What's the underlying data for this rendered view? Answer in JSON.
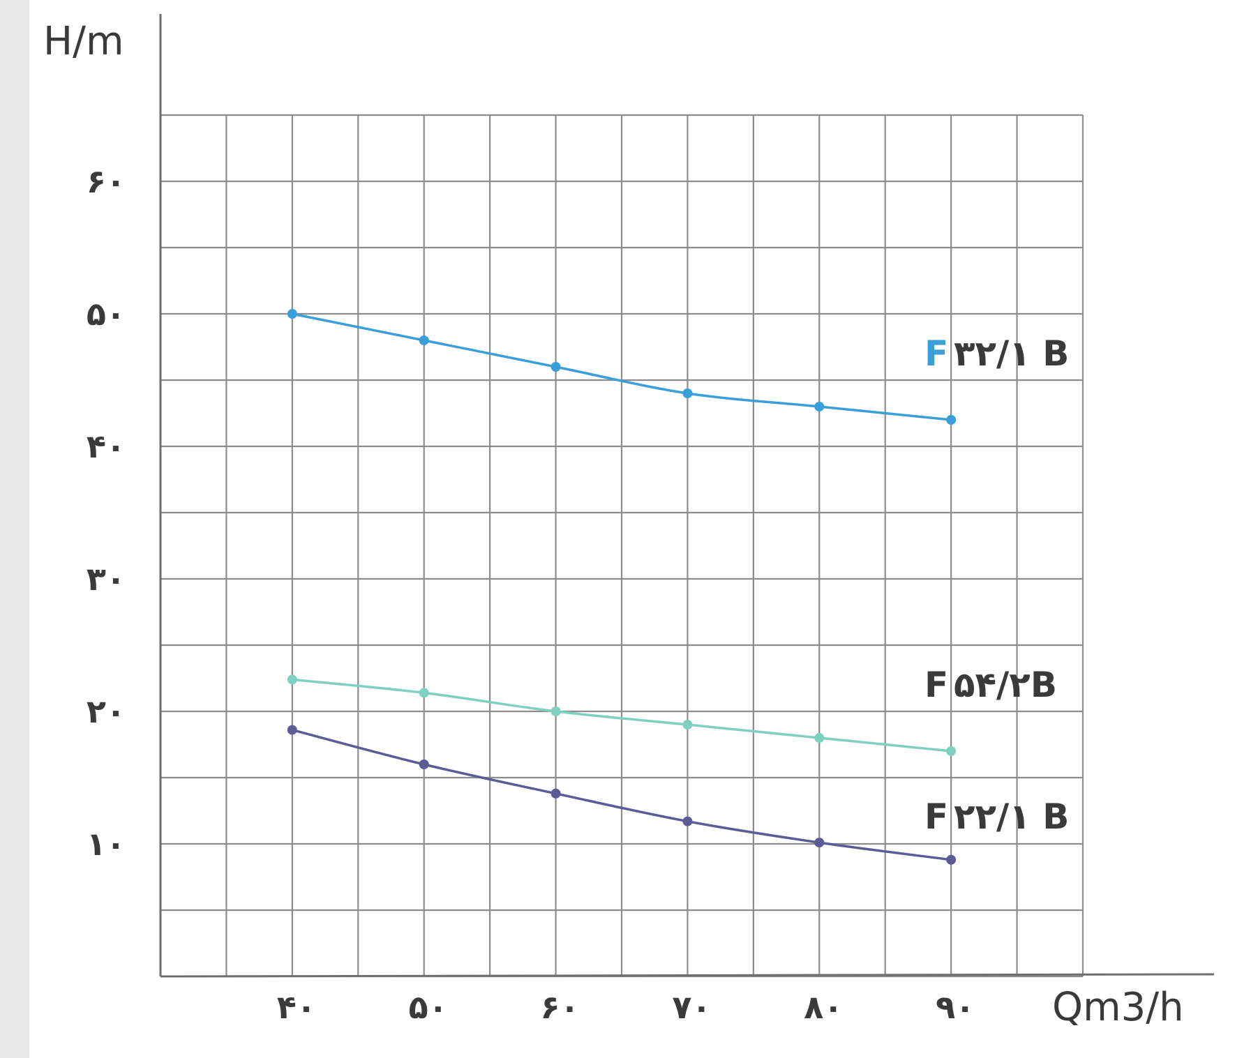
{
  "chart_data": {
    "type": "line",
    "ylabel": "H/m",
    "xlabel": "Qm3/h",
    "x": [
      40,
      50,
      60,
      70,
      80,
      90
    ],
    "x_tick_labels": [
      "۴۰",
      "۵۰",
      "۶۰",
      "۷۰",
      "۸۰",
      "۹۰"
    ],
    "y_ticks": [
      10,
      20,
      30,
      40,
      50,
      60
    ],
    "y_tick_labels": [
      "۱۰",
      "۲۰",
      "۳۰",
      "۴۰",
      "۵۰",
      "۶۰"
    ],
    "xlim": [
      30,
      100
    ],
    "ylim": [
      0,
      65
    ],
    "grid": true,
    "series": [
      {
        "name": "F ۳۲/۱ B",
        "name_prefix": "F",
        "name_suffix": "۳۲/۱ B",
        "color": "#3a9fd8",
        "prefix_color": "#3a9fd8",
        "values": [
          50,
          48,
          46,
          44,
          43,
          42
        ]
      },
      {
        "name": "F ۵۴/۲B",
        "name_prefix": "F",
        "name_suffix": "۵۴/۲B",
        "color": "#7fd0c0",
        "prefix_color": "#3a3a3a",
        "values": [
          22.4,
          21.4,
          20,
          19,
          18,
          17
        ]
      },
      {
        "name": "F ۲۲/۱ B",
        "name_prefix": "F",
        "name_suffix": "۲۲/۱ B",
        "color": "#5b5c96",
        "prefix_color": "#3a3a3a",
        "values": [
          18.6,
          16,
          13.8,
          11.7,
          10.1,
          8.8
        ]
      }
    ]
  }
}
